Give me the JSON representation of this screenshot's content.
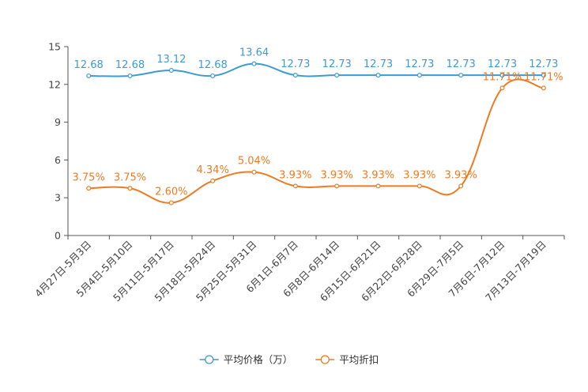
{
  "chart_data": {
    "type": "line",
    "title": "",
    "xlabel": "",
    "ylabel": "",
    "ylim": [
      0,
      15
    ],
    "yticks": [
      0,
      3,
      6,
      9,
      12,
      15
    ],
    "grid": false,
    "legend_position": "bottom-center",
    "categories": [
      "4月27日-5月3日",
      "5月4日-5月10日",
      "5月11日-5月17日",
      "5月18日-5月24日",
      "5月25日-5月31日",
      "6月1日-6月7日",
      "6月8日-6月14日",
      "6月15日-6月21日",
      "6月22日-6月28日",
      "6月29日-7月5日",
      "7月6日-7月12日",
      "7月13日-7月19日"
    ],
    "series": [
      {
        "name": "平均价格（万）",
        "color": "#3d9bd1",
        "values": [
          12.68,
          12.68,
          13.12,
          12.68,
          13.64,
          12.73,
          12.73,
          12.73,
          12.73,
          12.73,
          12.73,
          12.73
        ],
        "labels": [
          "12.68",
          "12.68",
          "13.12",
          "12.68",
          "13.64",
          "12.73",
          "12.73",
          "12.73",
          "12.73",
          "12.73",
          "12.73",
          "12.73"
        ]
      },
      {
        "name": "平均折扣",
        "color": "#f07a22",
        "values": [
          3.75,
          3.75,
          2.6,
          4.34,
          5.04,
          3.93,
          3.93,
          3.93,
          3.93,
          3.93,
          11.71,
          11.71
        ],
        "labels": [
          "3.75%",
          "3.75%",
          "2.60%",
          "4.34%",
          "5.04%",
          "3.93%",
          "3.93%",
          "3.93%",
          "3.93%",
          "3.93%",
          "11.71%",
          "11.71%"
        ]
      }
    ]
  }
}
